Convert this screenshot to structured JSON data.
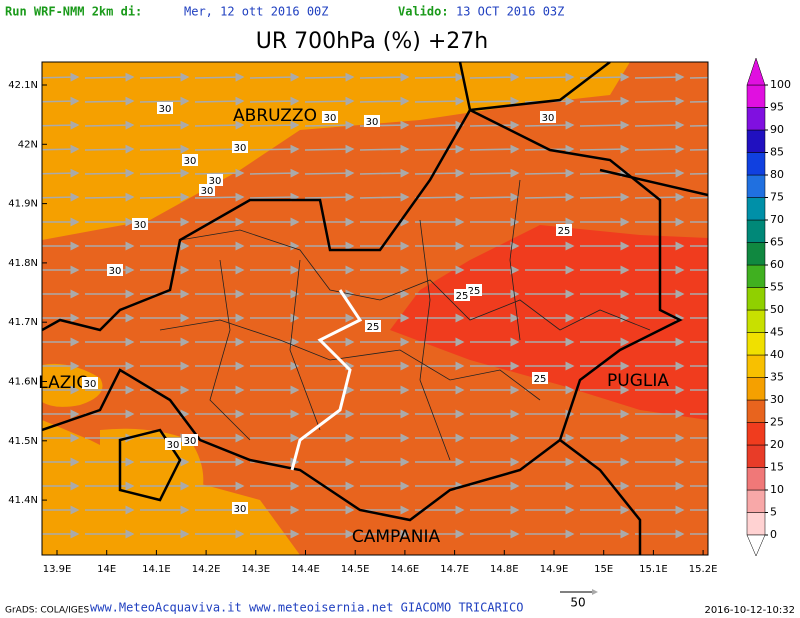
{
  "header": {
    "run_label": "Run WRF-NMM 2km di:",
    "run_date": "Mer, 12 ott 2016 00Z",
    "valid_label": "Valido:",
    "valid_date": "13 OCT 2016 03Z"
  },
  "title": "UR 700hPa (%) +27h",
  "lat_labels": [
    "42.1N",
    "42N",
    "41.9N",
    "41.8N",
    "41.7N",
    "41.6N",
    "41.5N",
    "41.4N"
  ],
  "lon_labels": [
    "13.9E",
    "14E",
    "14.1E",
    "14.2E",
    "14.3E",
    "14.4E",
    "14.5E",
    "14.6E",
    "14.7E",
    "14.8E",
    "14.9E",
    "15E",
    "15.1E",
    "15.2E"
  ],
  "regions": [
    "ABRUZZO",
    "LAZIO",
    "PUGLIA",
    "CAMPANIA"
  ],
  "contour_labels": [
    "30",
    "30",
    "30",
    "30",
    "30",
    "30",
    "30",
    "30",
    "30",
    "30",
    "25",
    "25",
    "25",
    "25",
    "25",
    "30",
    "30",
    "30",
    "30"
  ],
  "colorbar": {
    "ticks": [
      0,
      5,
      10,
      15,
      20,
      25,
      30,
      35,
      40,
      45,
      50,
      55,
      60,
      65,
      70,
      75,
      80,
      85,
      90,
      95,
      100
    ],
    "colors": [
      "#ffd2d2",
      "#f8a8a8",
      "#f07878",
      "#e83c28",
      "#f03c1e",
      "#e8641e",
      "#f5a000",
      "#f8c000",
      "#f0e000",
      "#c8e000",
      "#90d000",
      "#40b020",
      "#108840",
      "#008878",
      "#0090a8",
      "#2070e0",
      "#1040e0",
      "#2010c0",
      "#8010e0",
      "#e010e0"
    ]
  },
  "footer": {
    "credit": "GrADS: COLA/IGES",
    "sites": "www.MeteoAcquaviva.it www.meteoisernia.net GIACOMO TRICARICO",
    "vector_scale": "50",
    "timestamp": "2016-10-12-10:32"
  }
}
